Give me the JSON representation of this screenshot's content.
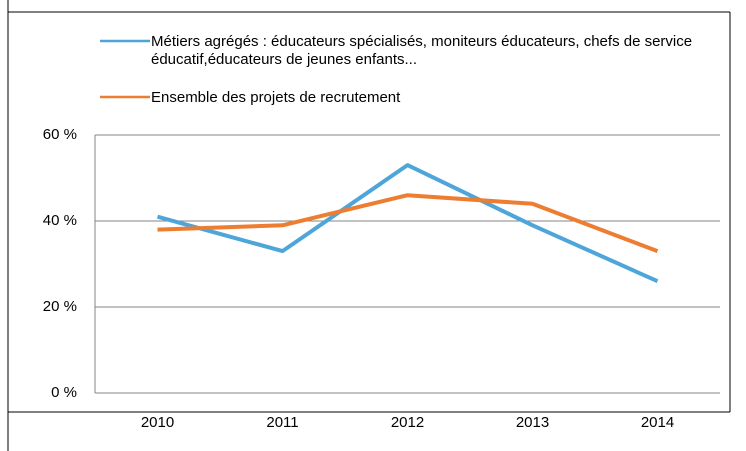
{
  "chart_data": {
    "type": "line",
    "categories": [
      "2010",
      "2011",
      "2012",
      "2013",
      "2014"
    ],
    "series": [
      {
        "name": "Métiers agrégés : éducateurs spécialisés, moniteurs éducateurs, chefs de service éducatif,éducateurs de jeunes enfants...",
        "color": "#4ea5d9",
        "values": [
          41,
          33,
          53,
          39,
          26
        ]
      },
      {
        "name": "Ensemble des projets de recrutement",
        "color": "#ed7d31",
        "values": [
          38,
          39,
          46,
          44,
          33
        ]
      }
    ],
    "ylim": [
      0,
      60
    ],
    "yticks": [
      {
        "value": 0,
        "label": "0 %"
      },
      {
        "value": 20,
        "label": "20 %"
      },
      {
        "value": 40,
        "label": "40 %"
      },
      {
        "value": 60,
        "label": "60 %"
      }
    ],
    "grid": true,
    "legend": "top"
  }
}
